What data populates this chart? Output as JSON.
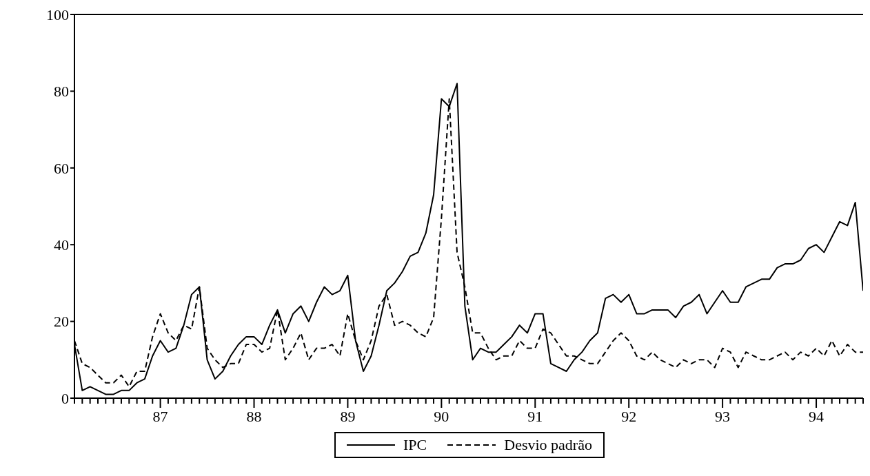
{
  "chart_data": {
    "type": "line",
    "x": [
      "1986-02",
      "1986-03",
      "1986-04",
      "1986-05",
      "1986-06",
      "1986-07",
      "1986-08",
      "1986-09",
      "1986-10",
      "1986-11",
      "1986-12",
      "1987-01",
      "1987-02",
      "1987-03",
      "1987-04",
      "1987-05",
      "1987-06",
      "1987-07",
      "1987-08",
      "1987-09",
      "1987-10",
      "1987-11",
      "1987-12",
      "1988-01",
      "1988-02",
      "1988-03",
      "1988-04",
      "1988-05",
      "1988-06",
      "1988-07",
      "1988-08",
      "1988-09",
      "1988-10",
      "1988-11",
      "1988-12",
      "1989-01",
      "1989-02",
      "1989-03",
      "1989-04",
      "1989-05",
      "1989-06",
      "1989-07",
      "1989-08",
      "1989-09",
      "1989-10",
      "1989-11",
      "1989-12",
      "1990-01",
      "1990-02",
      "1990-03",
      "1990-04",
      "1990-05",
      "1990-06",
      "1990-07",
      "1990-08",
      "1990-09",
      "1990-10",
      "1990-11",
      "1990-12",
      "1991-01",
      "1991-02",
      "1991-03",
      "1991-04",
      "1991-05",
      "1991-06",
      "1991-07",
      "1991-08",
      "1991-09",
      "1991-10",
      "1991-11",
      "1991-12",
      "1992-01",
      "1992-02",
      "1992-03",
      "1992-04",
      "1992-05",
      "1992-06",
      "1992-07",
      "1992-08",
      "1992-09",
      "1992-10",
      "1992-11",
      "1992-12",
      "1993-01",
      "1993-02",
      "1993-03",
      "1993-04",
      "1993-05",
      "1993-06",
      "1993-07",
      "1993-08",
      "1993-09",
      "1993-10",
      "1993-11",
      "1993-12",
      "1994-01",
      "1994-02",
      "1994-03",
      "1994-04",
      "1994-05",
      "1994-06",
      "1994-07"
    ],
    "series": [
      {
        "name": "IPC",
        "color": "#000000",
        "line_style": "solid",
        "values": [
          14,
          2,
          3,
          2,
          1,
          1,
          2,
          2,
          4,
          5,
          11,
          15,
          12,
          13,
          19,
          27,
          29,
          10,
          5,
          7,
          11,
          14,
          16,
          16,
          14,
          19,
          23,
          17,
          22,
          24,
          20,
          25,
          29,
          27,
          28,
          32,
          15,
          7,
          11,
          19,
          28,
          30,
          33,
          37,
          38,
          43,
          53,
          78,
          76,
          82,
          24,
          10,
          13,
          12,
          12,
          14,
          16,
          19,
          17,
          22,
          22,
          9,
          8,
          7,
          10,
          12,
          15,
          17,
          26,
          27,
          25,
          27,
          22,
          22,
          23,
          23,
          23,
          21,
          24,
          25,
          27,
          22,
          25,
          28,
          25,
          25,
          29,
          30,
          31,
          31,
          34,
          35,
          35,
          36,
          39,
          40,
          38,
          42,
          46,
          45,
          51,
          28
        ]
      },
      {
        "name": "Desvio padrão",
        "color": "#000000",
        "line_style": "dashed",
        "values": [
          15,
          9,
          8,
          6,
          4,
          4,
          6,
          3,
          7,
          7,
          16,
          22,
          17,
          15,
          19,
          18,
          29,
          13,
          10,
          8,
          9,
          9,
          14,
          14,
          12,
          13,
          23,
          10,
          13,
          17,
          10,
          13,
          13,
          14,
          11,
          22,
          15,
          10,
          15,
          24,
          27,
          19,
          20,
          19,
          17,
          16,
          21,
          47,
          78,
          38,
          29,
          17,
          17,
          13,
          10,
          11,
          11,
          15,
          13,
          13,
          18,
          17,
          14,
          11,
          11,
          10,
          9,
          9,
          12,
          15,
          17,
          15,
          11,
          10,
          12,
          10,
          9,
          8,
          10,
          9,
          10,
          10,
          8,
          13,
          12,
          8,
          12,
          11,
          10,
          10,
          11,
          12,
          10,
          12,
          11,
          13,
          11,
          15,
          11,
          14,
          12,
          12
        ]
      }
    ],
    "xlim": [
      "1986-02",
      "1994-07"
    ],
    "xticks": [
      {
        "value": "1986-02",
        "label": null
      },
      {
        "value": "1986-03",
        "label": null
      },
      {
        "value": "1986-04",
        "label": null
      },
      {
        "value": "1986-05",
        "label": null
      },
      {
        "value": "1986-06",
        "label": null
      },
      {
        "value": "1986-07",
        "label": null
      },
      {
        "value": "1986-08",
        "label": null
      },
      {
        "value": "1986-09",
        "label": null
      },
      {
        "value": "1986-10",
        "label": null
      },
      {
        "value": "1986-11",
        "label": null
      },
      {
        "value": "1986-12",
        "label": null
      },
      {
        "value": "1987-01",
        "label": "87"
      },
      {
        "value": "1987-02",
        "label": null
      },
      {
        "value": "1987-03",
        "label": null
      },
      {
        "value": "1987-04",
        "label": null
      },
      {
        "value": "1987-05",
        "label": null
      },
      {
        "value": "1987-06",
        "label": null
      },
      {
        "value": "1987-07",
        "label": null
      },
      {
        "value": "1987-08",
        "label": null
      },
      {
        "value": "1987-09",
        "label": null
      },
      {
        "value": "1987-10",
        "label": null
      },
      {
        "value": "1987-11",
        "label": null
      },
      {
        "value": "1987-12",
        "label": null
      },
      {
        "value": "1988-01",
        "label": "88"
      },
      {
        "value": "1988-02",
        "label": null
      },
      {
        "value": "1988-03",
        "label": null
      },
      {
        "value": "1988-04",
        "label": null
      },
      {
        "value": "1988-05",
        "label": null
      },
      {
        "value": "1988-06",
        "label": null
      },
      {
        "value": "1988-07",
        "label": null
      },
      {
        "value": "1988-08",
        "label": null
      },
      {
        "value": "1988-09",
        "label": null
      },
      {
        "value": "1988-10",
        "label": null
      },
      {
        "value": "1988-11",
        "label": null
      },
      {
        "value": "1988-12",
        "label": null
      },
      {
        "value": "1989-01",
        "label": "89"
      },
      {
        "value": "1989-02",
        "label": null
      },
      {
        "value": "1989-03",
        "label": null
      },
      {
        "value": "1989-04",
        "label": null
      },
      {
        "value": "1989-05",
        "label": null
      },
      {
        "value": "1989-06",
        "label": null
      },
      {
        "value": "1989-07",
        "label": null
      },
      {
        "value": "1989-08",
        "label": null
      },
      {
        "value": "1989-09",
        "label": null
      },
      {
        "value": "1989-10",
        "label": null
      },
      {
        "value": "1989-11",
        "label": null
      },
      {
        "value": "1989-12",
        "label": null
      },
      {
        "value": "1990-01",
        "label": "90"
      },
      {
        "value": "1990-02",
        "label": null
      },
      {
        "value": "1990-03",
        "label": null
      },
      {
        "value": "1990-04",
        "label": null
      },
      {
        "value": "1990-05",
        "label": null
      },
      {
        "value": "1990-06",
        "label": null
      },
      {
        "value": "1990-07",
        "label": null
      },
      {
        "value": "1990-08",
        "label": null
      },
      {
        "value": "1990-09",
        "label": null
      },
      {
        "value": "1990-10",
        "label": null
      },
      {
        "value": "1990-11",
        "label": null
      },
      {
        "value": "1990-12",
        "label": null
      },
      {
        "value": "1991-01",
        "label": "91"
      },
      {
        "value": "1991-02",
        "label": null
      },
      {
        "value": "1991-03",
        "label": null
      },
      {
        "value": "1991-04",
        "label": null
      },
      {
        "value": "1991-05",
        "label": null
      },
      {
        "value": "1991-06",
        "label": null
      },
      {
        "value": "1991-07",
        "label": null
      },
      {
        "value": "1991-08",
        "label": null
      },
      {
        "value": "1991-09",
        "label": null
      },
      {
        "value": "1991-10",
        "label": null
      },
      {
        "value": "1991-11",
        "label": null
      },
      {
        "value": "1991-12",
        "label": null
      },
      {
        "value": "1992-01",
        "label": "92"
      },
      {
        "value": "1992-02",
        "label": null
      },
      {
        "value": "1992-03",
        "label": null
      },
      {
        "value": "1992-04",
        "label": null
      },
      {
        "value": "1992-05",
        "label": null
      },
      {
        "value": "1992-06",
        "label": null
      },
      {
        "value": "1992-07",
        "label": null
      },
      {
        "value": "1992-08",
        "label": null
      },
      {
        "value": "1992-09",
        "label": null
      },
      {
        "value": "1992-10",
        "label": null
      },
      {
        "value": "1992-11",
        "label": null
      },
      {
        "value": "1992-12",
        "label": null
      },
      {
        "value": "1993-01",
        "label": "93"
      },
      {
        "value": "1993-02",
        "label": null
      },
      {
        "value": "1993-03",
        "label": null
      },
      {
        "value": "1993-04",
        "label": null
      },
      {
        "value": "1993-05",
        "label": null
      },
      {
        "value": "1993-06",
        "label": null
      },
      {
        "value": "1993-07",
        "label": null
      },
      {
        "value": "1993-08",
        "label": null
      },
      {
        "value": "1993-09",
        "label": null
      },
      {
        "value": "1993-10",
        "label": null
      },
      {
        "value": "1993-11",
        "label": null
      },
      {
        "value": "1993-12",
        "label": null
      },
      {
        "value": "1994-01",
        "label": "94"
      },
      {
        "value": "1994-02",
        "label": null
      },
      {
        "value": "1994-03",
        "label": null
      },
      {
        "value": "1994-04",
        "label": null
      },
      {
        "value": "1994-05",
        "label": null
      },
      {
        "value": "1994-06",
        "label": null
      },
      {
        "value": "1994-07",
        "label": null
      }
    ],
    "ylim": [
      0,
      100
    ],
    "yticks": [
      0,
      20,
      40,
      60,
      80,
      100
    ],
    "legend": "bottom"
  }
}
